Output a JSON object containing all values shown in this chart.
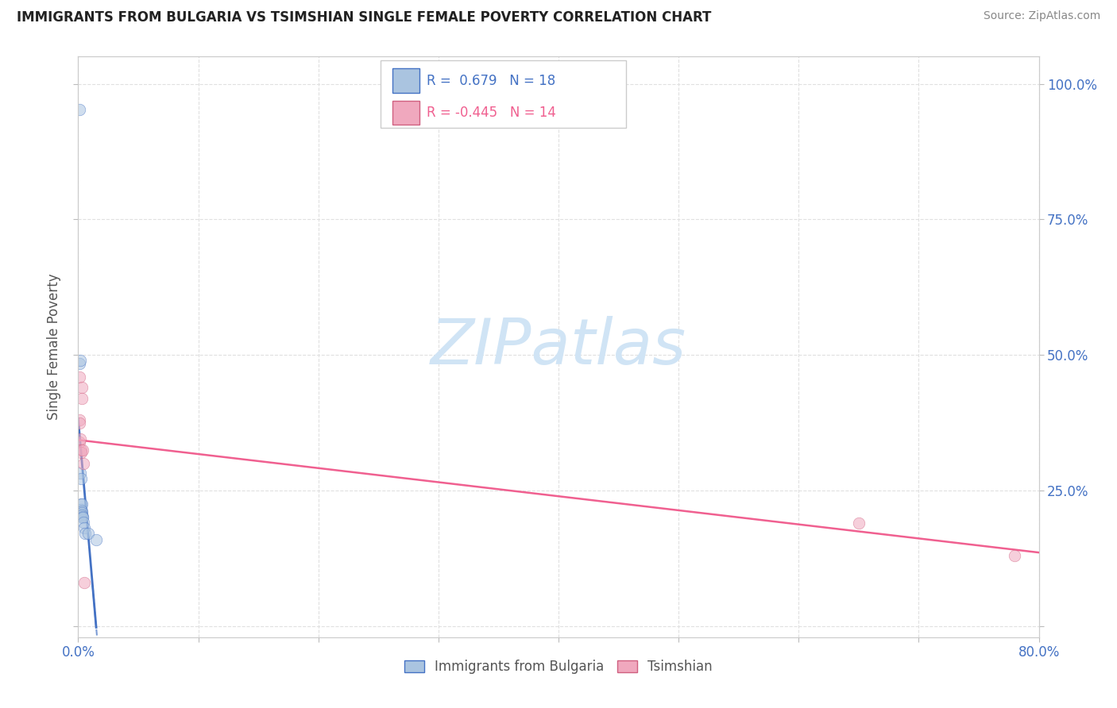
{
  "title": "IMMIGRANTS FROM BULGARIA VS TSIMSHIAN SINGLE FEMALE POVERTY CORRELATION CHART",
  "source": "Source: ZipAtlas.com",
  "ylabel": "Single Female Poverty",
  "xlim": [
    0.0,
    0.8
  ],
  "ylim": [
    -0.02,
    1.05
  ],
  "bg_color": "#ffffff",
  "grid_color": "#e0e0e0",
  "bulgaria_color": "#aac4e0",
  "tsimshian_color": "#f0a8be",
  "bulgaria_line_color": "#4472c4",
  "tsimshian_line_color": "#f06090",
  "r_bulgaria": 0.679,
  "n_bulgaria": 18,
  "r_tsimshian": -0.445,
  "n_tsimshian": 14,
  "bulgaria_x": [
    0.0012,
    0.0012,
    0.0014,
    0.002,
    0.0022,
    0.0024,
    0.0026,
    0.003,
    0.003,
    0.0032,
    0.0033,
    0.0034,
    0.004,
    0.0042,
    0.0052,
    0.006,
    0.0082,
    0.015
  ],
  "bulgaria_y": [
    0.952,
    0.485,
    0.49,
    0.283,
    0.272,
    0.225,
    0.215,
    0.225,
    0.212,
    0.21,
    0.205,
    0.202,
    0.2,
    0.192,
    0.182,
    0.172,
    0.172,
    0.16
  ],
  "tsimshian_x": [
    0.001,
    0.0011,
    0.0012,
    0.0013,
    0.002,
    0.0022,
    0.0024,
    0.003,
    0.0032,
    0.004,
    0.0042,
    0.0052,
    0.65,
    0.78
  ],
  "tsimshian_y": [
    0.46,
    0.38,
    0.375,
    0.34,
    0.345,
    0.325,
    0.32,
    0.44,
    0.42,
    0.325,
    0.3,
    0.08,
    0.19,
    0.13
  ],
  "watermark_text": "ZIPatlas",
  "watermark_color": "#d0e4f5",
  "marker_size": 110,
  "marker_alpha": 0.55,
  "legend_label_bulgaria": "Immigrants from Bulgaria",
  "legend_label_tsimshian": "Tsimshian"
}
